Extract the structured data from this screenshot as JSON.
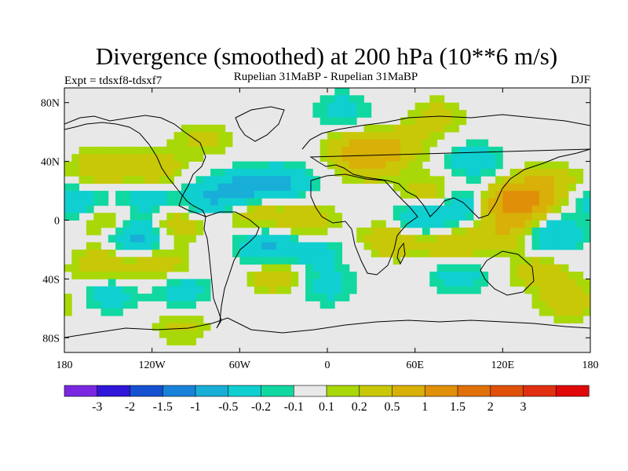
{
  "chart_data": {
    "type": "heatmap",
    "title": "Divergence (smoothed) at 200 hPa (10**6 m/s)",
    "left_label": "Expt = tdsxf8-tdsxf7",
    "center_label": "Rupelian  31MaBP - Rupelian  31MaBP",
    "right_label": "DJF",
    "x_range": [
      -180,
      180
    ],
    "y_range": [
      -90,
      90
    ],
    "x_ticks": [
      {
        "value": -180,
        "label": "180"
      },
      {
        "value": -120,
        "label": "120W"
      },
      {
        "value": -60,
        "label": "60W"
      },
      {
        "value": 0,
        "label": "0"
      },
      {
        "value": 60,
        "label": "60E"
      },
      {
        "value": 120,
        "label": "120E"
      },
      {
        "value": 180,
        "label": "180"
      }
    ],
    "y_ticks": [
      {
        "value": 80,
        "label": "80N"
      },
      {
        "value": 40,
        "label": "40N"
      },
      {
        "value": 0,
        "label": "0"
      },
      {
        "value": -40,
        "label": "40S"
      },
      {
        "value": -80,
        "label": "80S"
      }
    ],
    "colorbar": {
      "colors": [
        "#7a28e0",
        "#3016d8",
        "#1450d0",
        "#1882d8",
        "#18aed8",
        "#10cfd0",
        "#10d8a0",
        "#e8e8e8",
        "#a8d808",
        "#c8c808",
        "#d8b008",
        "#e09008",
        "#e07008",
        "#e05008",
        "#e03010",
        "#e00808"
      ],
      "labels": [
        "-3",
        "-2",
        "-1.5",
        "-1",
        "-0.5",
        "-0.2",
        "-0.1",
        "0.1",
        "0.2",
        "0.5",
        "1",
        "1.5",
        "2",
        "3"
      ],
      "levels": [
        -3,
        -2,
        -1.5,
        -1,
        -0.5,
        -0.2,
        -0.1,
        0.1,
        0.2,
        0.5,
        1,
        1.5,
        2,
        3
      ]
    },
    "field_anomalies": [
      {
        "lon": -155,
        "lat": 35,
        "value": 0.45
      },
      {
        "lon": -120,
        "lat": 35,
        "value": 0.5
      },
      {
        "lon": -85,
        "lat": 55,
        "value": 0.25
      },
      {
        "lon": -170,
        "lat": 12,
        "value": -0.45
      },
      {
        "lon": -125,
        "lat": 15,
        "value": -0.4
      },
      {
        "lon": -80,
        "lat": 15,
        "value": -0.5
      },
      {
        "lon": -150,
        "lat": 0,
        "value": 0.4
      },
      {
        "lon": -105,
        "lat": -3,
        "value": 0.4
      },
      {
        "lon": -130,
        "lat": -10,
        "value": -0.7
      },
      {
        "lon": -155,
        "lat": -30,
        "value": 0.4
      },
      {
        "lon": -115,
        "lat": -30,
        "value": 0.4
      },
      {
        "lon": -150,
        "lat": -50,
        "value": -0.35
      },
      {
        "lon": -100,
        "lat": -48,
        "value": -0.35
      },
      {
        "lon": -55,
        "lat": 22,
        "value": -0.6
      },
      {
        "lon": -30,
        "lat": 25,
        "value": -0.5
      },
      {
        "lon": -50,
        "lat": 5,
        "value": 0.4
      },
      {
        "lon": -15,
        "lat": 0,
        "value": 0.45
      },
      {
        "lon": -42,
        "lat": -18,
        "value": -0.55
      },
      {
        "lon": -10,
        "lat": -22,
        "value": -0.35
      },
      {
        "lon": -35,
        "lat": -38,
        "value": 0.4
      },
      {
        "lon": 0,
        "lat": -45,
        "value": -0.3
      },
      {
        "lon": 20,
        "lat": 48,
        "value": 0.55
      },
      {
        "lon": 48,
        "lat": 50,
        "value": 0.45
      },
      {
        "lon": 30,
        "lat": 38,
        "value": 0.35
      },
      {
        "lon": 10,
        "lat": 75,
        "value": -0.3
      },
      {
        "lon": 75,
        "lat": 70,
        "value": 0.3
      },
      {
        "lon": 100,
        "lat": 40,
        "value": -0.35
      },
      {
        "lon": 70,
        "lat": 18,
        "value": 0.4
      },
      {
        "lon": 45,
        "lat": -12,
        "value": 0.5
      },
      {
        "lon": 60,
        "lat": 0,
        "value": -0.5
      },
      {
        "lon": 90,
        "lat": 10,
        "value": -0.45
      },
      {
        "lon": 85,
        "lat": -18,
        "value": 0.4
      },
      {
        "lon": 90,
        "lat": -38,
        "value": -0.35
      },
      {
        "lon": 130,
        "lat": 12,
        "value": 1.4
      },
      {
        "lon": 150,
        "lat": 25,
        "value": 0.5
      },
      {
        "lon": 120,
        "lat": -8,
        "value": 0.5
      },
      {
        "lon": 155,
        "lat": -10,
        "value": -0.5
      },
      {
        "lon": 145,
        "lat": -35,
        "value": 0.35
      },
      {
        "lon": 165,
        "lat": -55,
        "value": 0.4
      },
      {
        "lon": -100,
        "lat": -72,
        "value": 0.25
      }
    ]
  }
}
